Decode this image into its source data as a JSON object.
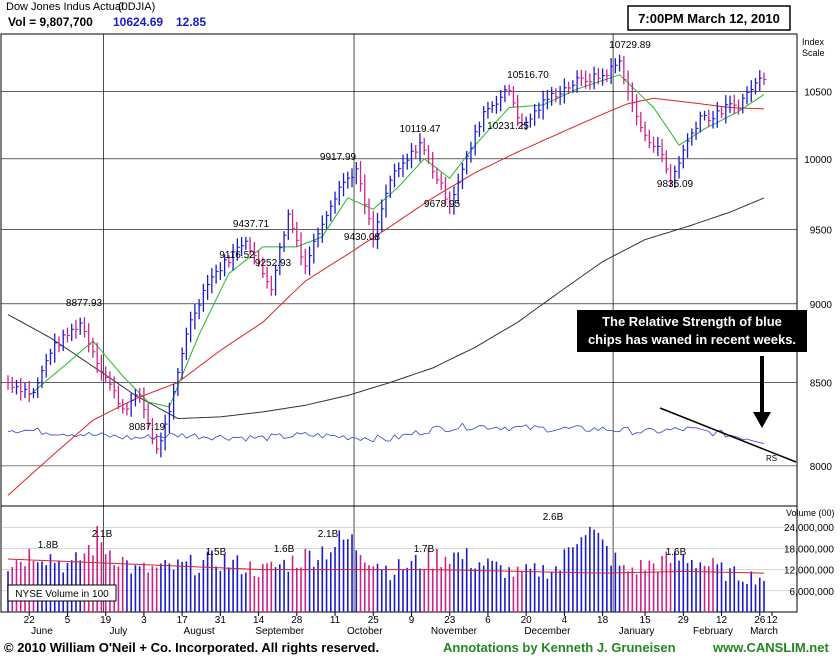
{
  "header": {
    "title": "Dow Jones Indus Actual",
    "symbol": "(0DJIA)",
    "vol_label": "Vol = 9,807,700",
    "last_price": "10624.69",
    "change": "12.85",
    "timestamp": "7:00PM March 12, 2010"
  },
  "annotation": {
    "line1": "The Relative Strength of blue",
    "line2": "chips has waned in recent weeks."
  },
  "footer": {
    "copyright": "© 2010 William O'Neil + Co. Incorporated. All rights reserved.",
    "annotations": "Annotations by Kenneth J. Gruneisen",
    "site": "www.CANSLIM.net"
  },
  "colors": {
    "up_bar": "#1a1acc",
    "down_bar": "#cc2288",
    "ma50": "#22bb22",
    "ma200_red": "#dd2222",
    "ma_long": "#333333",
    "rs_line": "#3344cc",
    "footer_red": "#cc0000",
    "footer_green": "#228822"
  },
  "chart_data": {
    "type": "ohlc",
    "title": "Dow Jones Indus Actual (0DJIA)",
    "price_axis": {
      "label": "Index Scale",
      "ticks": [
        8000,
        8500,
        9000,
        9500,
        10000,
        10500
      ],
      "tick_labels": [
        "8000",
        "8500",
        "9000",
        "9500",
        "10000",
        "10500"
      ],
      "ylim": [
        7770,
        10950
      ],
      "scale": "log"
    },
    "volume_axis": {
      "label": "Volume (00)",
      "ticks": [
        6000000,
        12000000,
        18000000,
        24000000
      ],
      "tick_labels": [
        "6,000,000",
        "12,000,000",
        "18,000,000",
        "24,000,000"
      ],
      "ylim": [
        0,
        30000000
      ]
    },
    "volume_box_label": "NYSE Volume in 100",
    "x_axis": {
      "day_labels": [
        "22",
        "5",
        "19",
        "3",
        "17",
        "31",
        "14",
        "28",
        "11",
        "25",
        "9",
        "23",
        "6",
        "20",
        "4",
        "18",
        "15",
        "29",
        "12",
        "26",
        "12"
      ],
      "month_labels": [
        "June",
        "July",
        "August",
        "September",
        "October",
        "November",
        "December",
        "January",
        "February",
        "March"
      ]
    },
    "price_annotations": [
      "8877.93",
      "8087.19",
      "9437.71",
      "9116.52",
      "9252.93",
      "9917.99",
      "9430.08",
      "10119.47",
      "9678.95",
      "10516.70",
      "10231.25",
      "10729.89",
      "9835.09"
    ],
    "volume_annotations": [
      "1.8B",
      "2.1B",
      "1.5B",
      "1.6B",
      "2.1B",
      "1.7B",
      "2.6B",
      "1.6B"
    ],
    "rs_label": "RS",
    "series": [
      {
        "name": "Price",
        "kind": "ohlc",
        "anchors": [
          {
            "t": 0,
            "v": 8500
          },
          {
            "t": 6,
            "v": 8430
          },
          {
            "t": 10,
            "v": 8700
          },
          {
            "t": 14,
            "v": 8800
          },
          {
            "t": 17,
            "v": 8877.93
          },
          {
            "t": 22,
            "v": 8580
          },
          {
            "t": 27,
            "v": 8340
          },
          {
            "t": 31,
            "v": 8420
          },
          {
            "t": 35,
            "v": 8087.19
          },
          {
            "t": 38,
            "v": 8300
          },
          {
            "t": 42,
            "v": 8820
          },
          {
            "t": 47,
            "v": 9150
          },
          {
            "t": 52,
            "v": 9300
          },
          {
            "t": 56,
            "v": 9437.71
          },
          {
            "t": 60,
            "v": 9200
          },
          {
            "t": 62,
            "v": 9116.52
          },
          {
            "t": 66,
            "v": 9600
          },
          {
            "t": 70,
            "v": 9252.93
          },
          {
            "t": 74,
            "v": 9560
          },
          {
            "t": 78,
            "v": 9800
          },
          {
            "t": 82,
            "v": 9917.99
          },
          {
            "t": 86,
            "v": 9430.08
          },
          {
            "t": 90,
            "v": 9850
          },
          {
            "t": 94,
            "v": 9990
          },
          {
            "t": 97,
            "v": 10119.47
          },
          {
            "t": 101,
            "v": 9860
          },
          {
            "t": 104,
            "v": 9678.95
          },
          {
            "t": 108,
            "v": 10000
          },
          {
            "t": 112,
            "v": 10350
          },
          {
            "t": 118,
            "v": 10516.7
          },
          {
            "t": 121,
            "v": 10231.25
          },
          {
            "t": 127,
            "v": 10450
          },
          {
            "t": 134,
            "v": 10580
          },
          {
            "t": 140,
            "v": 10620
          },
          {
            "t": 144,
            "v": 10729.89
          },
          {
            "t": 147,
            "v": 10400
          },
          {
            "t": 150,
            "v": 10150
          },
          {
            "t": 153,
            "v": 10100
          },
          {
            "t": 156,
            "v": 9835.09
          },
          {
            "t": 159,
            "v": 10060
          },
          {
            "t": 163,
            "v": 10320
          },
          {
            "t": 166,
            "v": 10300
          },
          {
            "t": 169,
            "v": 10380
          },
          {
            "t": 172,
            "v": 10400
          },
          {
            "t": 175,
            "v": 10530
          },
          {
            "t": 178,
            "v": 10624.69
          }
        ]
      },
      {
        "name": "Moving average (short)",
        "kind": "line",
        "anchors": [
          {
            "t": 5,
            "v": 8420
          },
          {
            "t": 14,
            "v": 8620
          },
          {
            "t": 20,
            "v": 8760
          },
          {
            "t": 27,
            "v": 8540
          },
          {
            "t": 33,
            "v": 8380
          },
          {
            "t": 38,
            "v": 8350
          },
          {
            "t": 45,
            "v": 8800
          },
          {
            "t": 52,
            "v": 9200
          },
          {
            "t": 60,
            "v": 9380
          },
          {
            "t": 68,
            "v": 9380
          },
          {
            "t": 74,
            "v": 9450
          },
          {
            "t": 80,
            "v": 9720
          },
          {
            "t": 86,
            "v": 9640
          },
          {
            "t": 92,
            "v": 9800
          },
          {
            "t": 98,
            "v": 10000
          },
          {
            "t": 104,
            "v": 9860
          },
          {
            "t": 110,
            "v": 10100
          },
          {
            "t": 118,
            "v": 10380
          },
          {
            "t": 126,
            "v": 10400
          },
          {
            "t": 134,
            "v": 10520
          },
          {
            "t": 144,
            "v": 10630
          },
          {
            "t": 152,
            "v": 10380
          },
          {
            "t": 158,
            "v": 10100
          },
          {
            "t": 164,
            "v": 10220
          },
          {
            "t": 172,
            "v": 10350
          },
          {
            "t": 178,
            "v": 10480
          }
        ]
      },
      {
        "name": "Moving average (medium)",
        "kind": "line",
        "anchors": [
          {
            "t": 0,
            "v": 7830
          },
          {
            "t": 10,
            "v": 8050
          },
          {
            "t": 20,
            "v": 8270
          },
          {
            "t": 30,
            "v": 8400
          },
          {
            "t": 40,
            "v": 8500
          },
          {
            "t": 50,
            "v": 8700
          },
          {
            "t": 60,
            "v": 8880
          },
          {
            "t": 70,
            "v": 9150
          },
          {
            "t": 80,
            "v": 9330
          },
          {
            "t": 90,
            "v": 9520
          },
          {
            "t": 100,
            "v": 9720
          },
          {
            "t": 110,
            "v": 9900
          },
          {
            "t": 120,
            "v": 10050
          },
          {
            "t": 130,
            "v": 10190
          },
          {
            "t": 140,
            "v": 10330
          },
          {
            "t": 146,
            "v": 10410
          },
          {
            "t": 152,
            "v": 10450
          },
          {
            "t": 160,
            "v": 10420
          },
          {
            "t": 170,
            "v": 10380
          },
          {
            "t": 178,
            "v": 10370
          }
        ]
      },
      {
        "name": "Moving average (long)",
        "kind": "line",
        "anchors": [
          {
            "t": 0,
            "v": 8930
          },
          {
            "t": 10,
            "v": 8780
          },
          {
            "t": 20,
            "v": 8600
          },
          {
            "t": 30,
            "v": 8420
          },
          {
            "t": 40,
            "v": 8280
          },
          {
            "t": 50,
            "v": 8290
          },
          {
            "t": 60,
            "v": 8320
          },
          {
            "t": 70,
            "v": 8360
          },
          {
            "t": 80,
            "v": 8420
          },
          {
            "t": 90,
            "v": 8500
          },
          {
            "t": 100,
            "v": 8590
          },
          {
            "t": 110,
            "v": 8720
          },
          {
            "t": 120,
            "v": 8880
          },
          {
            "t": 130,
            "v": 9080
          },
          {
            "t": 140,
            "v": 9280
          },
          {
            "t": 150,
            "v": 9430
          },
          {
            "t": 160,
            "v": 9520
          },
          {
            "t": 170,
            "v": 9620
          },
          {
            "t": 178,
            "v": 9720
          }
        ]
      },
      {
        "name": "RS",
        "kind": "line",
        "scale": "relative",
        "anchors": [
          {
            "t": 0,
            "v": 0.55
          },
          {
            "t": 10,
            "v": 0.5
          },
          {
            "t": 20,
            "v": 0.45
          },
          {
            "t": 30,
            "v": 0.4
          },
          {
            "t": 40,
            "v": 0.45
          },
          {
            "t": 50,
            "v": 0.42
          },
          {
            "t": 60,
            "v": 0.4
          },
          {
            "t": 70,
            "v": 0.45
          },
          {
            "t": 80,
            "v": 0.42
          },
          {
            "t": 90,
            "v": 0.38
          },
          {
            "t": 100,
            "v": 0.55
          },
          {
            "t": 110,
            "v": 0.6
          },
          {
            "t": 120,
            "v": 0.57
          },
          {
            "t": 130,
            "v": 0.55
          },
          {
            "t": 140,
            "v": 0.55
          },
          {
            "t": 150,
            "v": 0.5
          },
          {
            "t": 160,
            "v": 0.55
          },
          {
            "t": 170,
            "v": 0.45
          },
          {
            "t": 178,
            "v": 0.35
          }
        ]
      },
      {
        "name": "Volume",
        "kind": "bars",
        "anchors": [
          {
            "t": 0,
            "v": 14000000
          },
          {
            "t": 7,
            "v": 18000000
          },
          {
            "t": 15,
            "v": 13000000
          },
          {
            "t": 21,
            "v": 21000000
          },
          {
            "t": 30,
            "v": 12000000
          },
          {
            "t": 40,
            "v": 13000000
          },
          {
            "t": 50,
            "v": 15000000
          },
          {
            "t": 60,
            "v": 12000000
          },
          {
            "t": 70,
            "v": 16000000
          },
          {
            "t": 80,
            "v": 21000000
          },
          {
            "t": 90,
            "v": 12000000
          },
          {
            "t": 104,
            "v": 17000000
          },
          {
            "t": 120,
            "v": 11000000
          },
          {
            "t": 130,
            "v": 13000000
          },
          {
            "t": 135,
            "v": 26000000
          },
          {
            "t": 145,
            "v": 12000000
          },
          {
            "t": 160,
            "v": 16000000
          },
          {
            "t": 170,
            "v": 11000000
          },
          {
            "t": 178,
            "v": 10000000
          }
        ]
      },
      {
        "name": "Volume moving average",
        "kind": "line",
        "anchors": [
          {
            "t": 0,
            "v": 15000000
          },
          {
            "t": 20,
            "v": 14000000
          },
          {
            "t": 40,
            "v": 13000000
          },
          {
            "t": 60,
            "v": 12000000
          },
          {
            "t": 80,
            "v": 12000000
          },
          {
            "t": 100,
            "v": 12000000
          },
          {
            "t": 120,
            "v": 11500000
          },
          {
            "t": 140,
            "v": 11000000
          },
          {
            "t": 160,
            "v": 11500000
          },
          {
            "t": 178,
            "v": 11000000
          }
        ]
      }
    ]
  }
}
